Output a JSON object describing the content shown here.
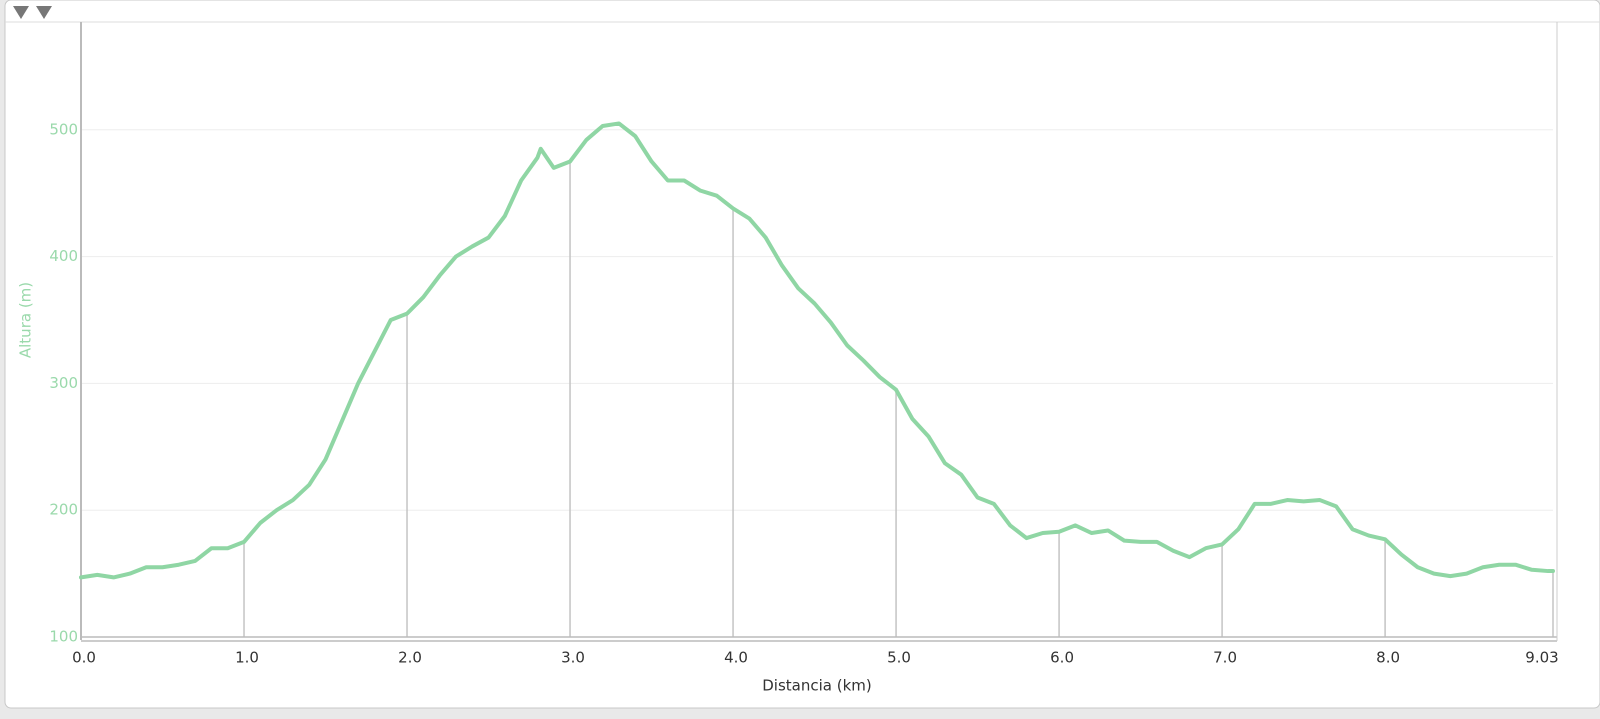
{
  "chart_data": {
    "type": "line",
    "xlabel": "Distancia (km)",
    "ylabel": "Altura (m)",
    "x": [
      0,
      0.1,
      0.2,
      0.3,
      0.4,
      0.5,
      0.6,
      0.7,
      0.8,
      0.9,
      1.0,
      1.1,
      1.2,
      1.3,
      1.4,
      1.5,
      1.6,
      1.7,
      1.8,
      1.9,
      2.0,
      2.1,
      2.2,
      2.3,
      2.4,
      2.5,
      2.6,
      2.7,
      2.8,
      2.82,
      2.9,
      3.0,
      3.1,
      3.2,
      3.3,
      3.4,
      3.5,
      3.6,
      3.7,
      3.8,
      3.9,
      4.0,
      4.1,
      4.2,
      4.3,
      4.4,
      4.5,
      4.6,
      4.7,
      4.8,
      4.9,
      5.0,
      5.1,
      5.2,
      5.3,
      5.4,
      5.5,
      5.6,
      5.7,
      5.8,
      5.9,
      6.0,
      6.1,
      6.2,
      6.3,
      6.4,
      6.5,
      6.6,
      6.7,
      6.8,
      6.9,
      7.0,
      7.1,
      7.2,
      7.3,
      7.4,
      7.5,
      7.6,
      7.7,
      7.8,
      7.9,
      8.0,
      8.1,
      8.2,
      8.3,
      8.4,
      8.5,
      8.6,
      8.7,
      8.8,
      8.9,
      9.0,
      9.03
    ],
    "series": [
      {
        "name": "Altura",
        "color": "#8fd6a4",
        "values": [
          147,
          149,
          147,
          150,
          155,
          155,
          157,
          160,
          170,
          170,
          175,
          190,
          200,
          208,
          220,
          240,
          270,
          300,
          325,
          350,
          355,
          368,
          385,
          400,
          408,
          415,
          432,
          460,
          478,
          485,
          470,
          475,
          492,
          503,
          505,
          495,
          475,
          460,
          460,
          452,
          448,
          438,
          430,
          415,
          393,
          375,
          363,
          348,
          330,
          318,
          305,
          295,
          272,
          258,
          237,
          228,
          210,
          205,
          188,
          178,
          182,
          183,
          188,
          182,
          184,
          176,
          175,
          175,
          168,
          163,
          170,
          173,
          185,
          205,
          205,
          208,
          207,
          208,
          203,
          185,
          180,
          177,
          165,
          155,
          150,
          148,
          150,
          155,
          157,
          157,
          153,
          152,
          152
        ]
      }
    ],
    "xlim": [
      0,
      9.03
    ],
    "xticks": [
      {
        "value": 0,
        "label": "0.0"
      },
      {
        "value": 1,
        "label": "1.0"
      },
      {
        "value": 2,
        "label": "2.0"
      },
      {
        "value": 3,
        "label": "3.0"
      },
      {
        "value": 4,
        "label": "4.0"
      },
      {
        "value": 5,
        "label": "5.0"
      },
      {
        "value": 6,
        "label": "6.0"
      },
      {
        "value": 7,
        "label": "7.0"
      },
      {
        "value": 8,
        "label": "8.0"
      },
      9.03
    ],
    "ylim": [
      100,
      585
    ],
    "yticks": [
      100,
      200,
      300,
      400,
      500
    ],
    "grid": true
  }
}
